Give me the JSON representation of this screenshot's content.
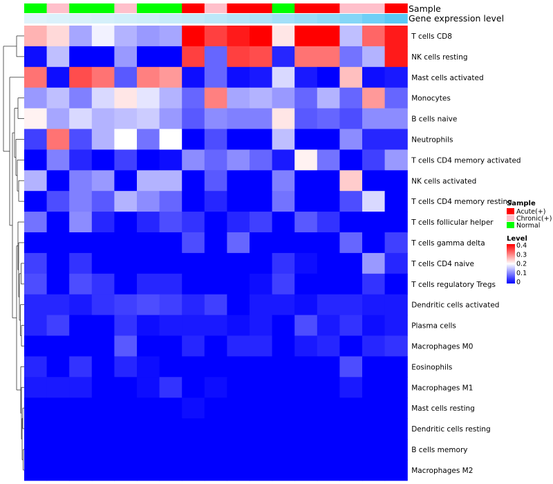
{
  "chart_data": {
    "type": "heatmap",
    "annotation_labels": {
      "sample": "Sample",
      "gene_expression": "Gene expression level"
    },
    "sample_groups": [
      "Normal",
      "Chronic(+)",
      "Normal",
      "Normal",
      "Chronic(+)",
      "Normal",
      "Normal",
      "Acute(+)",
      "Chronic(+)",
      "Acute(+)",
      "Acute(+)",
      "Normal",
      "Acute(+)",
      "Acute(+)",
      "Chronic(+)",
      "Chronic(+)",
      "Acute(+)"
    ],
    "gene_expression_level": [
      0.05,
      0.08,
      0.1,
      0.12,
      0.15,
      0.18,
      0.22,
      0.25,
      0.3,
      0.35,
      0.4,
      0.48,
      0.55,
      0.62,
      0.7,
      0.85,
      1.0
    ],
    "rows": [
      "T cells CD8",
      "NK cells resting",
      "Mast cells activated",
      "Monocytes",
      "B cells naive",
      "Neutrophils",
      "T cells CD4 memory activated",
      "NK cells activated",
      "T cells CD4 memory resting",
      "T cells follicular helper",
      "T cells gamma delta",
      "T cells CD4 naive",
      "T cells regulatory  Tregs",
      "Dendritic cells activated",
      "Plasma cells",
      "Macrophages M0",
      "Eosinophils",
      "Macrophages M1",
      "Mast cells resting",
      "Dendritic cells resting",
      "B cells memory",
      "Macrophages M2"
    ],
    "values": [
      [
        0.26,
        0.23,
        0.13,
        0.19,
        0.14,
        0.12,
        0.13,
        0.4,
        0.35,
        0.38,
        0.4,
        0.22,
        0.4,
        0.4,
        0.15,
        0.32,
        0.38
      ],
      [
        0.01,
        0.15,
        0.0,
        0.0,
        0.12,
        0.0,
        0.0,
        0.35,
        0.08,
        0.35,
        0.34,
        0.03,
        0.31,
        0.31,
        0.09,
        0.14,
        0.38
      ],
      [
        0.31,
        0.01,
        0.34,
        0.31,
        0.07,
        0.3,
        0.28,
        0.01,
        0.08,
        0.01,
        0.02,
        0.17,
        0.02,
        0.0,
        0.25,
        0.01,
        0.02
      ],
      [
        0.12,
        0.15,
        0.1,
        0.17,
        0.22,
        0.18,
        0.14,
        0.08,
        0.3,
        0.13,
        0.14,
        0.12,
        0.08,
        0.14,
        0.08,
        0.28,
        0.08
      ],
      [
        0.21,
        0.13,
        0.17,
        0.14,
        0.15,
        0.16,
        0.12,
        0.07,
        0.11,
        0.1,
        0.1,
        0.22,
        0.07,
        0.08,
        0.06,
        0.11,
        0.11
      ],
      [
        0.05,
        0.31,
        0.06,
        0.14,
        0.2,
        0.09,
        0.2,
        0.0,
        0.06,
        0.0,
        0.0,
        0.15,
        0.0,
        0.0,
        0.11,
        0.03,
        0.03
      ],
      [
        0.0,
        0.1,
        0.03,
        0.0,
        0.05,
        0.0,
        0.01,
        0.11,
        0.08,
        0.11,
        0.08,
        0.02,
        0.21,
        0.09,
        0.0,
        0.05,
        0.12
      ],
      [
        0.14,
        0.0,
        0.1,
        0.12,
        0.0,
        0.14,
        0.14,
        0.0,
        0.07,
        0.0,
        0.0,
        0.1,
        0.0,
        0.0,
        0.24,
        0.0,
        0.0
      ],
      [
        0.0,
        0.06,
        0.1,
        0.07,
        0.14,
        0.11,
        0.08,
        0.0,
        0.03,
        0.0,
        0.0,
        0.09,
        0.0,
        0.0,
        0.06,
        0.17,
        0.0
      ],
      [
        0.09,
        0.0,
        0.11,
        0.03,
        0.0,
        0.03,
        0.06,
        0.04,
        0.0,
        0.03,
        0.05,
        0.0,
        0.07,
        0.04,
        0.0,
        0.0,
        0.0
      ],
      [
        0.0,
        0.0,
        0.0,
        0.0,
        0.0,
        0.0,
        0.0,
        0.06,
        0.0,
        0.08,
        0.0,
        0.0,
        0.0,
        0.0,
        0.08,
        0.0,
        0.05
      ],
      [
        0.05,
        0.0,
        0.04,
        0.0,
        0.0,
        0.0,
        0.0,
        0.0,
        0.0,
        0.0,
        0.0,
        0.04,
        0.01,
        0.0,
        0.0,
        0.12,
        0.03
      ],
      [
        0.06,
        0.0,
        0.06,
        0.04,
        0.0,
        0.03,
        0.03,
        0.0,
        0.0,
        0.0,
        0.01,
        0.05,
        0.0,
        0.0,
        0.0,
        0.04,
        0.0
      ],
      [
        0.03,
        0.03,
        0.02,
        0.04,
        0.05,
        0.06,
        0.05,
        0.03,
        0.05,
        0.0,
        0.02,
        0.02,
        0.01,
        0.03,
        0.03,
        0.02,
        0.02
      ],
      [
        0.03,
        0.05,
        0.0,
        0.0,
        0.04,
        0.01,
        0.02,
        0.02,
        0.02,
        0.01,
        0.02,
        0.0,
        0.06,
        0.02,
        0.04,
        0.01,
        0.02
      ],
      [
        0.0,
        0.0,
        0.0,
        0.0,
        0.07,
        0.0,
        0.0,
        0.03,
        0.0,
        0.03,
        0.03,
        0.0,
        0.02,
        0.03,
        0.0,
        0.03,
        0.04
      ],
      [
        0.03,
        0.0,
        0.04,
        0.0,
        0.03,
        0.01,
        0.0,
        0.0,
        0.0,
        0.0,
        0.0,
        0.0,
        0.0,
        0.0,
        0.06,
        0.0,
        0.0
      ],
      [
        0.02,
        0.02,
        0.02,
        0.0,
        0.0,
        0.01,
        0.04,
        0.0,
        0.01,
        0.0,
        0.0,
        0.0,
        0.0,
        0.0,
        0.02,
        0.0,
        0.0
      ],
      [
        0.0,
        0.0,
        0.0,
        0.0,
        0.0,
        0.0,
        0.0,
        0.01,
        0.0,
        0.0,
        0.0,
        0.0,
        0.0,
        0.0,
        0.0,
        0.0,
        0.0
      ],
      [
        0.0,
        0.0,
        0.0,
        0.0,
        0.0,
        0.0,
        0.0,
        0.0,
        0.0,
        0.0,
        0.0,
        0.0,
        0.0,
        0.0,
        0.0,
        0.0,
        0.0
      ],
      [
        0.0,
        0.0,
        0.0,
        0.0,
        0.0,
        0.0,
        0.0,
        0.0,
        0.0,
        0.0,
        0.0,
        0.0,
        0.0,
        0.0,
        0.0,
        0.0,
        0.0
      ],
      [
        0.0,
        0.0,
        0.0,
        0.0,
        0.0,
        0.0,
        0.0,
        0.0,
        0.0,
        0.0,
        0.0,
        0.0,
        0.0,
        0.0,
        0.0,
        0.0,
        0.0
      ]
    ],
    "legend": {
      "sample_title": "Sample",
      "sample_items": [
        {
          "name": "Acute(+)",
          "color": "#ff0000"
        },
        {
          "name": "Chronic(+)",
          "color": "#ffc0cb"
        },
        {
          "name": "Normal",
          "color": "#00ff00"
        }
      ],
      "level_title": "Level",
      "level_ticks": [
        "0.4",
        "0.3",
        "0.2",
        "0.1",
        "0"
      ],
      "level_range": [
        0,
        0.4
      ]
    },
    "colors": {
      "low": "#0000ff",
      "mid": "#ffffff",
      "high": "#ff0000",
      "gene_low": "#e6f5fb",
      "gene_high": "#5ac8f5"
    }
  }
}
